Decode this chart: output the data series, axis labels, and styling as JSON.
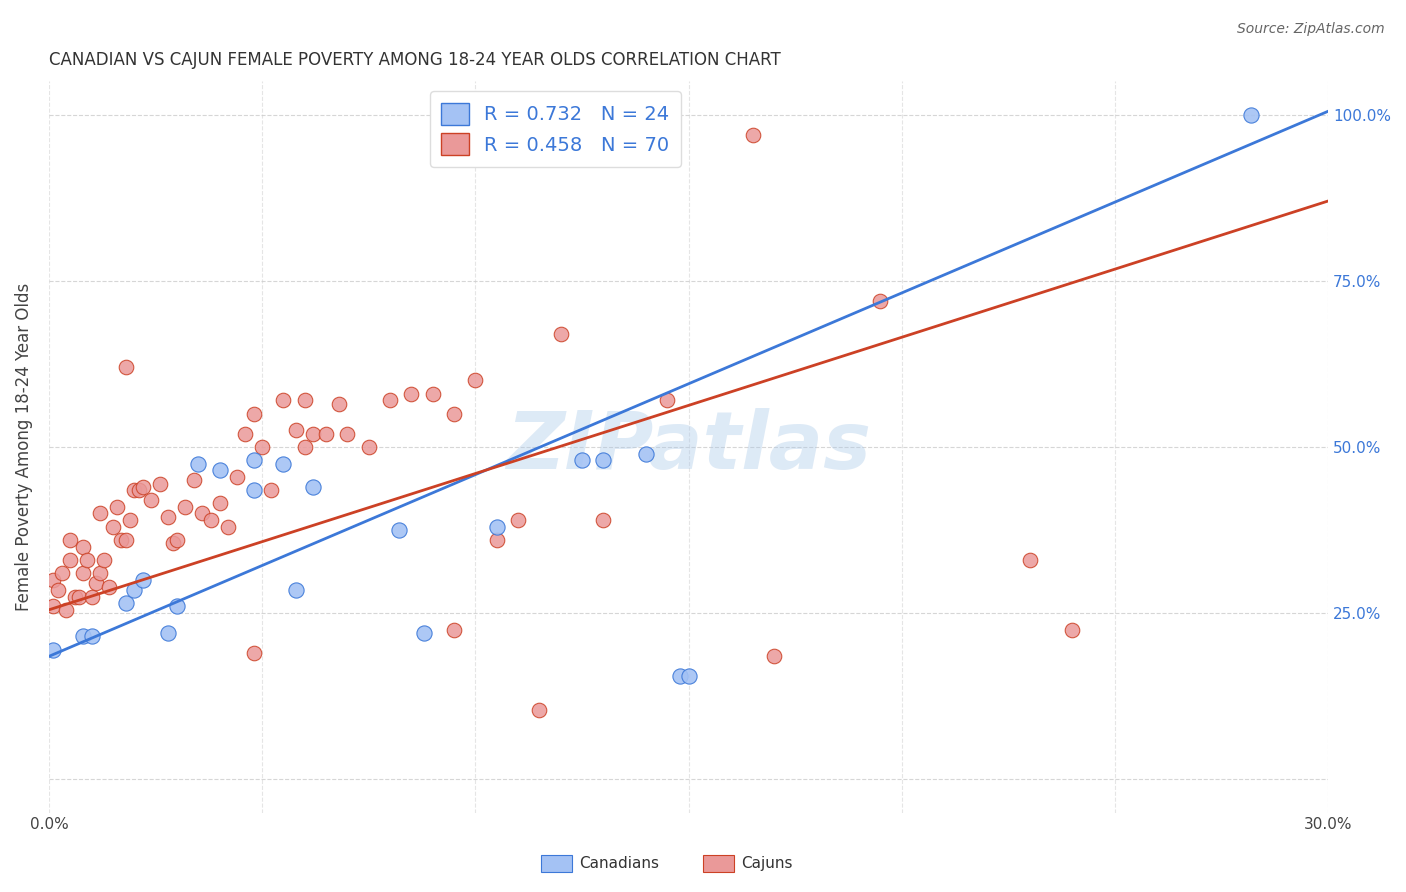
{
  "title": "CANADIAN VS CAJUN FEMALE POVERTY AMONG 18-24 YEAR OLDS CORRELATION CHART",
  "source": "Source: ZipAtlas.com",
  "ylabel_text": "Female Poverty Among 18-24 Year Olds",
  "x_min": 0.0,
  "x_max": 0.3,
  "y_min": 0.0,
  "y_max": 1.05,
  "canadians_R": 0.732,
  "canadians_N": 24,
  "cajuns_R": 0.458,
  "cajuns_N": 70,
  "canadians_color": "#a4c2f4",
  "cajuns_color": "#ea9999",
  "canadians_line_color": "#3c78d8",
  "cajuns_line_color": "#cc4125",
  "background_color": "#ffffff",
  "grid_color": "#cccccc",
  "watermark": "ZIPatlas",
  "canadians_x": [
    0.001,
    0.008,
    0.01,
    0.018,
    0.02,
    0.022,
    0.028,
    0.03,
    0.035,
    0.04,
    0.048,
    0.055,
    0.058,
    0.062,
    0.048,
    0.082,
    0.088,
    0.105,
    0.125,
    0.14,
    0.148,
    0.15,
    0.13,
    0.282
  ],
  "canadians_y": [
    0.195,
    0.215,
    0.215,
    0.265,
    0.285,
    0.3,
    0.22,
    0.26,
    0.475,
    0.465,
    0.435,
    0.475,
    0.285,
    0.44,
    0.48,
    0.375,
    0.22,
    0.38,
    0.48,
    0.49,
    0.155,
    0.155,
    0.48,
    1.0
  ],
  "cajuns_x": [
    0.001,
    0.001,
    0.002,
    0.003,
    0.004,
    0.005,
    0.005,
    0.006,
    0.007,
    0.008,
    0.008,
    0.009,
    0.01,
    0.011,
    0.012,
    0.012,
    0.013,
    0.014,
    0.015,
    0.016,
    0.017,
    0.018,
    0.019,
    0.02,
    0.021,
    0.022,
    0.024,
    0.026,
    0.028,
    0.029,
    0.03,
    0.032,
    0.034,
    0.036,
    0.038,
    0.04,
    0.042,
    0.044,
    0.046,
    0.048,
    0.05,
    0.052,
    0.055,
    0.058,
    0.06,
    0.062,
    0.065,
    0.068,
    0.07,
    0.075,
    0.08,
    0.085,
    0.09,
    0.095,
    0.1,
    0.105,
    0.11,
    0.12,
    0.13,
    0.145,
    0.165,
    0.17,
    0.195,
    0.23,
    0.24,
    0.018,
    0.048,
    0.06,
    0.095,
    0.115
  ],
  "cajuns_y": [
    0.26,
    0.3,
    0.285,
    0.31,
    0.255,
    0.33,
    0.36,
    0.275,
    0.275,
    0.31,
    0.35,
    0.33,
    0.275,
    0.295,
    0.31,
    0.4,
    0.33,
    0.29,
    0.38,
    0.41,
    0.36,
    0.36,
    0.39,
    0.435,
    0.435,
    0.44,
    0.42,
    0.445,
    0.395,
    0.355,
    0.36,
    0.41,
    0.45,
    0.4,
    0.39,
    0.415,
    0.38,
    0.455,
    0.52,
    0.55,
    0.5,
    0.435,
    0.57,
    0.525,
    0.57,
    0.52,
    0.52,
    0.565,
    0.52,
    0.5,
    0.57,
    0.58,
    0.58,
    0.55,
    0.6,
    0.36,
    0.39,
    0.67,
    0.39,
    0.57,
    0.97,
    0.185,
    0.72,
    0.33,
    0.225,
    0.62,
    0.19,
    0.5,
    0.225,
    0.105
  ],
  "legend_blue_label": "R = 0.732   N = 24",
  "legend_pink_label": "R = 0.458   N = 70",
  "bottom_legend_canadians": "Canadians",
  "bottom_legend_cajuns": "Cajuns",
  "canadians_line_x0": 0.0,
  "canadians_line_y0": 0.185,
  "canadians_line_x1": 0.3,
  "canadians_line_y1": 1.005,
  "cajuns_line_x0": 0.0,
  "cajuns_line_y0": 0.255,
  "cajuns_line_x1": 0.3,
  "cajuns_line_y1": 0.87
}
